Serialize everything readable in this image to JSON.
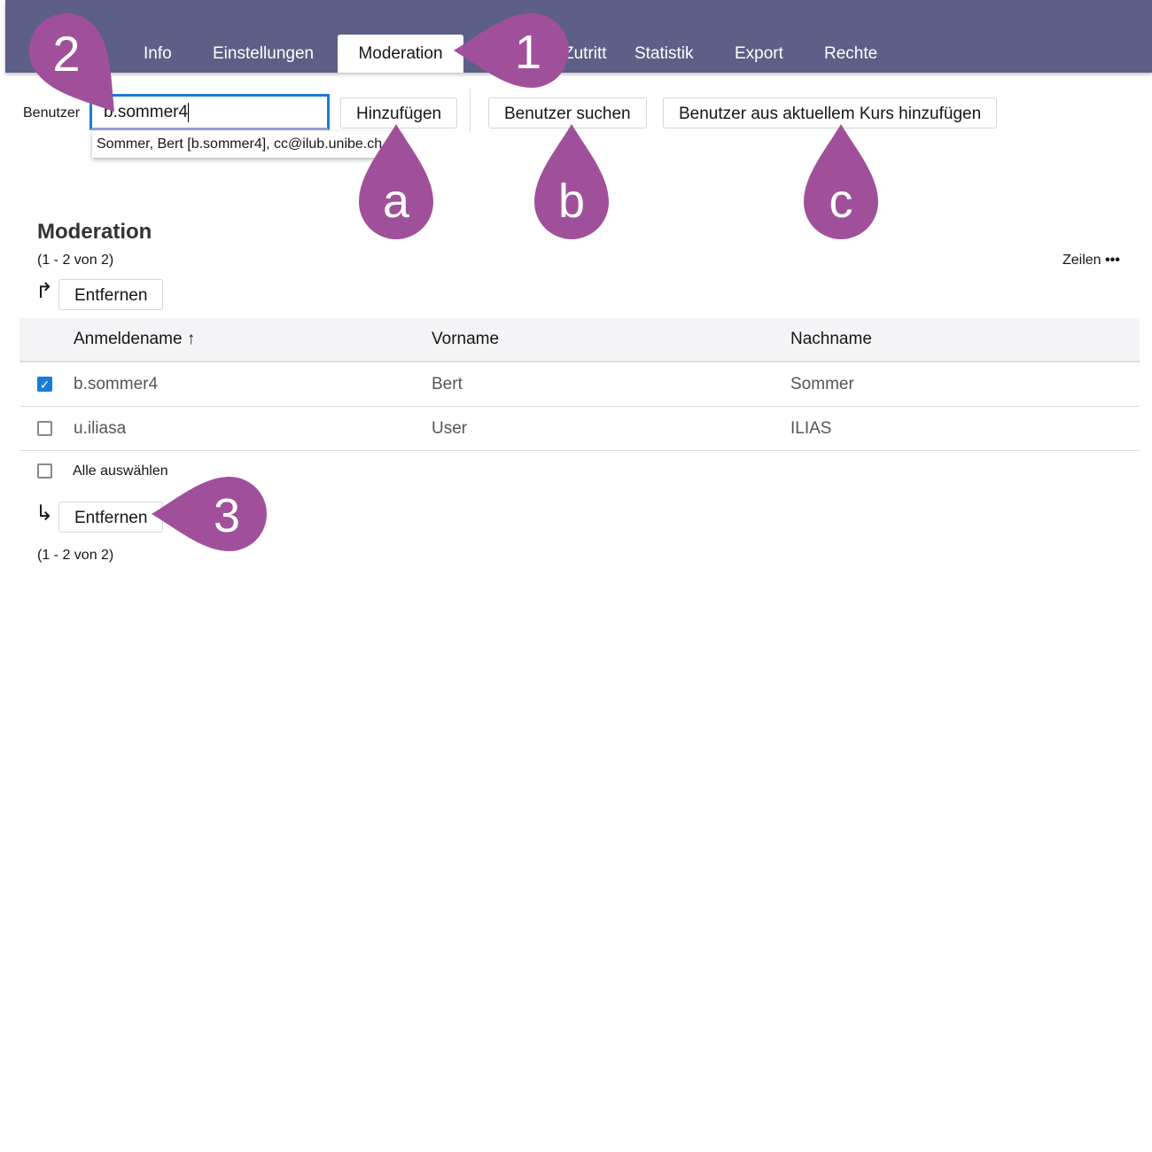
{
  "tabs": [
    {
      "label": "Info"
    },
    {
      "label": "Einstellungen"
    },
    {
      "label": "Moderation",
      "active": true
    },
    {
      "label": "Zutritt"
    },
    {
      "label": "Statistik"
    },
    {
      "label": "Export"
    },
    {
      "label": "Rechte"
    }
  ],
  "toolbar": {
    "user_label": "Benutzer",
    "user_value": "b.sommer4",
    "suggestion": "Sommer, Bert [b.sommer4], cc@ilub.unibe.ch",
    "add": "Hinzufügen",
    "search": "Benutzer suchen",
    "add_from_course": "Benutzer aus aktuellem Kurs hinzufügen"
  },
  "section": {
    "title": "Moderation",
    "range_top": "(1 - 2 von 2)",
    "range_bottom": "(1 - 2 von 2)",
    "rows_label": "Zeilen",
    "rows_icon": "•••",
    "remove": "Entfernen",
    "select_all": "Alle auswählen"
  },
  "table": {
    "headers": [
      "Anmeldename",
      "Vorname",
      "Nachname"
    ],
    "sort_icon": "↑",
    "rows": [
      [
        "b.sommer4",
        "Bert",
        "Sommer",
        true
      ],
      [
        "u.iliasa",
        "User",
        "ILIAS",
        false
      ]
    ]
  },
  "markers": {
    "m1": "1",
    "m2": "2",
    "m3": "3",
    "ma": "a",
    "mb": "b",
    "mc": "c",
    "color": "#a0509a"
  }
}
